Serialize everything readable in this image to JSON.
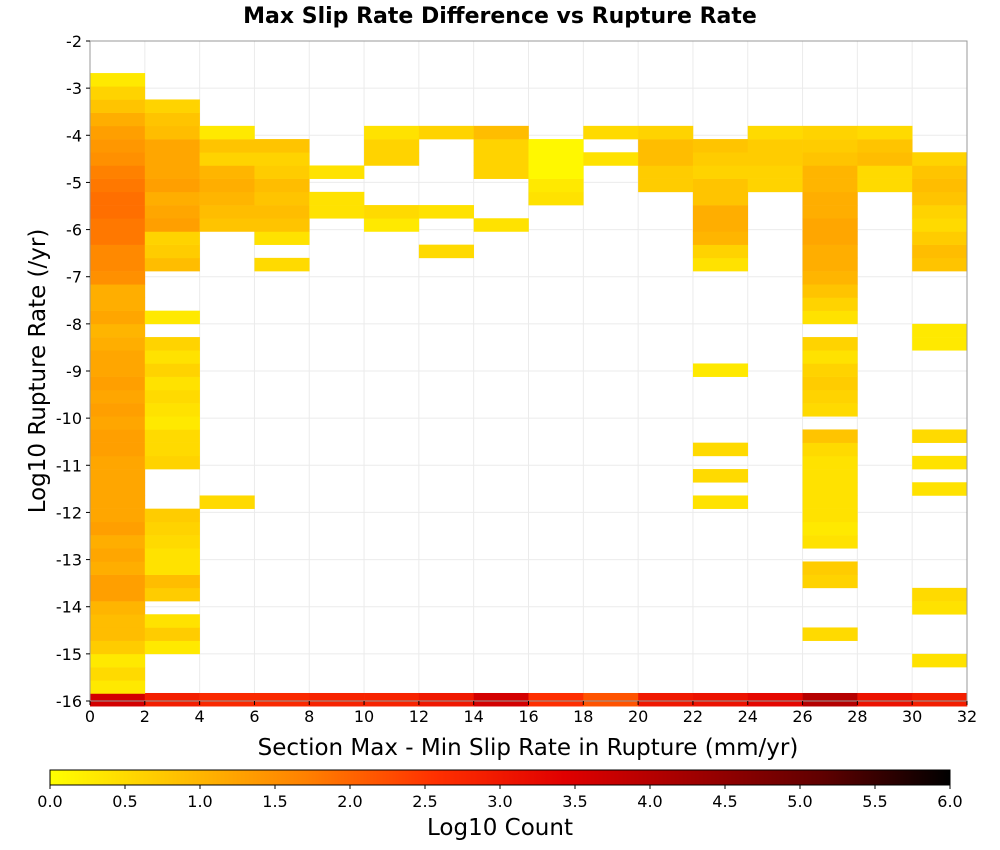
{
  "chart_data": {
    "type": "heatmap",
    "title": "Max Slip Rate Difference vs Rupture Rate",
    "xlabel": "Section Max - Min Slip Rate in Rupture (mm/yr)",
    "ylabel": "Log10 Rupture Rate (/yr)",
    "xlim": [
      0,
      32
    ],
    "ylim": [
      -16,
      -2
    ],
    "x_ticks": [
      0,
      2,
      4,
      6,
      8,
      10,
      12,
      14,
      16,
      18,
      20,
      22,
      24,
      26,
      28,
      30,
      32
    ],
    "y_ticks": [
      -2,
      -3,
      -4,
      -5,
      -6,
      -7,
      -8,
      -9,
      -10,
      -11,
      -12,
      -13,
      -14,
      -15,
      -16
    ],
    "grid": true,
    "x_bin_width": 2,
    "y_bin_height": 0.28,
    "colorbar": {
      "label": "Log10 Count",
      "min": 0,
      "max": 6,
      "ticks": [
        "0.0",
        "0.5",
        "1.0",
        "1.5",
        "2.0",
        "2.5",
        "3.0",
        "3.5",
        "4.0",
        "4.5",
        "5.0",
        "5.5",
        "6.0"
      ],
      "position": "bottom",
      "colormap": [
        "#ffff00",
        "#ffc000",
        "#ff8000",
        "#ff3000",
        "#e00000",
        "#a00000",
        "#600000",
        "#000000"
      ]
    },
    "cells": [
      [
        0,
        -15.97,
        3.6
      ],
      [
        1,
        -15.97,
        2.9
      ],
      [
        2,
        -15.97,
        2.7
      ],
      [
        3,
        -15.97,
        2.7
      ],
      [
        4,
        -15.97,
        2.8
      ],
      [
        5,
        -15.97,
        2.8
      ],
      [
        6,
        -15.97,
        3.0
      ],
      [
        7,
        -15.97,
        3.6
      ],
      [
        8,
        -15.97,
        2.6
      ],
      [
        9,
        -15.97,
        2.2
      ],
      [
        10,
        -15.97,
        3.0
      ],
      [
        11,
        -15.97,
        3.1
      ],
      [
        12,
        -15.97,
        3.3
      ],
      [
        13,
        -15.97,
        4.0
      ],
      [
        14,
        -15.97,
        3.1
      ],
      [
        15,
        -15.97,
        2.9
      ],
      [
        0,
        -15.7,
        0.3
      ],
      [
        0,
        -15.42,
        0.5
      ],
      [
        0,
        -15.14,
        0.3
      ],
      [
        0,
        -14.86,
        0.7
      ],
      [
        0,
        -14.58,
        0.9
      ],
      [
        0,
        -14.3,
        0.9
      ],
      [
        0,
        -14.02,
        1.0
      ],
      [
        0,
        -13.74,
        1.3
      ],
      [
        0,
        -13.46,
        1.3
      ],
      [
        0,
        -13.18,
        1.1
      ],
      [
        0,
        -12.9,
        1.2
      ],
      [
        0,
        -12.62,
        1.1
      ],
      [
        0,
        -12.34,
        1.3
      ],
      [
        0,
        -12.06,
        1.2
      ],
      [
        0,
        -11.78,
        1.2
      ],
      [
        0,
        -11.5,
        1.2
      ],
      [
        0,
        -11.22,
        1.2
      ],
      [
        0,
        -10.94,
        1.2
      ],
      [
        0,
        -10.66,
        1.3
      ],
      [
        0,
        -10.38,
        1.3
      ],
      [
        0,
        -10.1,
        1.2
      ],
      [
        0,
        -9.82,
        1.3
      ],
      [
        0,
        -9.54,
        1.2
      ],
      [
        0,
        -9.26,
        1.3
      ],
      [
        0,
        -8.98,
        1.2
      ],
      [
        0,
        -8.7,
        1.2
      ],
      [
        0,
        -8.42,
        1.1
      ],
      [
        0,
        -8.14,
        1.0
      ],
      [
        0,
        -7.86,
        1.2
      ],
      [
        0,
        -7.58,
        1.1
      ],
      [
        0,
        -7.3,
        1.1
      ],
      [
        0,
        -7.02,
        1.5
      ],
      [
        0,
        -6.74,
        1.6
      ],
      [
        0,
        -6.46,
        1.6
      ],
      [
        0,
        -6.18,
        1.8
      ],
      [
        0,
        -5.9,
        1.8
      ],
      [
        0,
        -5.62,
        1.9
      ],
      [
        0,
        -5.34,
        1.9
      ],
      [
        0,
        -5.06,
        1.8
      ],
      [
        0,
        -4.78,
        1.7
      ],
      [
        0,
        -4.5,
        1.5
      ],
      [
        0,
        -4.22,
        1.4
      ],
      [
        0,
        -3.94,
        1.3
      ],
      [
        0,
        -3.66,
        1.1
      ],
      [
        0,
        -3.38,
        0.8
      ],
      [
        0,
        -3.1,
        0.6
      ],
      [
        0,
        -2.82,
        0.3
      ],
      [
        1,
        -14.86,
        0.3
      ],
      [
        1,
        -14.58,
        0.7
      ],
      [
        1,
        -14.3,
        0.4
      ],
      [
        1,
        -13.74,
        0.7
      ],
      [
        1,
        -13.46,
        0.9
      ],
      [
        1,
        -13.18,
        0.4
      ],
      [
        1,
        -12.9,
        0.4
      ],
      [
        1,
        -12.62,
        0.5
      ],
      [
        1,
        -12.34,
        0.6
      ],
      [
        1,
        -12.06,
        0.7
      ],
      [
        1,
        -10.94,
        0.6
      ],
      [
        1,
        -10.66,
        0.5
      ],
      [
        1,
        -10.38,
        0.5
      ],
      [
        1,
        -10.1,
        0.3
      ],
      [
        1,
        -9.82,
        0.4
      ],
      [
        1,
        -9.54,
        0.5
      ],
      [
        1,
        -9.26,
        0.4
      ],
      [
        1,
        -8.98,
        0.6
      ],
      [
        1,
        -8.7,
        0.4
      ],
      [
        1,
        -8.42,
        0.6
      ],
      [
        1,
        -7.86,
        0.3
      ],
      [
        1,
        -6.74,
        0.9
      ],
      [
        1,
        -6.46,
        0.7
      ],
      [
        1,
        -6.18,
        0.6
      ],
      [
        1,
        -5.9,
        1.3
      ],
      [
        1,
        -5.62,
        1.2
      ],
      [
        1,
        -5.34,
        1.1
      ],
      [
        1,
        -5.06,
        1.3
      ],
      [
        1,
        -4.78,
        1.2
      ],
      [
        1,
        -4.5,
        1.2
      ],
      [
        1,
        -4.22,
        1.2
      ],
      [
        1,
        -3.94,
        0.9
      ],
      [
        1,
        -3.66,
        0.8
      ],
      [
        1,
        -3.38,
        0.6
      ],
      [
        2,
        -11.78,
        0.5
      ],
      [
        2,
        -5.9,
        0.8
      ],
      [
        2,
        -5.62,
        0.9
      ],
      [
        2,
        -5.34,
        1.0
      ],
      [
        2,
        -5.06,
        1.1
      ],
      [
        2,
        -4.78,
        1.0
      ],
      [
        2,
        -4.5,
        0.6
      ],
      [
        2,
        -4.22,
        0.8
      ],
      [
        2,
        -3.94,
        0.3
      ],
      [
        3,
        -6.74,
        0.5
      ],
      [
        3,
        -6.18,
        0.4
      ],
      [
        3,
        -5.9,
        0.8
      ],
      [
        3,
        -5.62,
        0.9
      ],
      [
        3,
        -5.34,
        0.8
      ],
      [
        3,
        -5.06,
        0.9
      ],
      [
        3,
        -4.78,
        0.7
      ],
      [
        3,
        -4.5,
        0.6
      ],
      [
        3,
        -4.22,
        0.8
      ],
      [
        4,
        -5.62,
        0.4
      ],
      [
        4,
        -5.34,
        0.4
      ],
      [
        4,
        -4.78,
        0.4
      ],
      [
        5,
        -5.9,
        0.3
      ],
      [
        5,
        -5.62,
        0.5
      ],
      [
        5,
        -4.5,
        0.6
      ],
      [
        5,
        -4.22,
        0.6
      ],
      [
        5,
        -3.94,
        0.4
      ],
      [
        6,
        -6.46,
        0.5
      ],
      [
        6,
        -5.62,
        0.4
      ],
      [
        6,
        -3.94,
        0.6
      ],
      [
        7,
        -5.9,
        0.4
      ],
      [
        7,
        -4.78,
        0.6
      ],
      [
        7,
        -4.5,
        0.6
      ],
      [
        7,
        -4.22,
        0.6
      ],
      [
        7,
        -3.94,
        0.9
      ],
      [
        8,
        -5.34,
        0.4
      ],
      [
        8,
        -5.06,
        0.3
      ],
      [
        8,
        -4.78,
        0.1
      ],
      [
        8,
        -4.5,
        0.1
      ],
      [
        8,
        -4.22,
        0.1
      ],
      [
        9,
        -4.5,
        0.4
      ],
      [
        9,
        -3.94,
        0.5
      ],
      [
        10,
        -5.06,
        0.7
      ],
      [
        10,
        -4.78,
        0.7
      ],
      [
        10,
        -4.5,
        0.9
      ],
      [
        10,
        -4.22,
        0.9
      ],
      [
        10,
        -3.94,
        0.6
      ],
      [
        11,
        -6.74,
        0.4
      ],
      [
        11,
        -6.46,
        0.6
      ],
      [
        11,
        -6.18,
        1.0
      ],
      [
        11,
        -5.9,
        1.1
      ],
      [
        11,
        -5.62,
        1.1
      ],
      [
        11,
        -5.34,
        0.8
      ],
      [
        11,
        -5.06,
        0.8
      ],
      [
        11,
        -4.78,
        0.6
      ],
      [
        11,
        -4.5,
        0.7
      ],
      [
        11,
        -4.22,
        0.8
      ],
      [
        11,
        -11.78,
        0.4
      ],
      [
        11,
        -11.22,
        0.5
      ],
      [
        11,
        -10.66,
        0.5
      ],
      [
        11,
        -8.98,
        0.3
      ],
      [
        12,
        -5.06,
        0.6
      ],
      [
        12,
        -4.78,
        0.6
      ],
      [
        12,
        -4.5,
        0.7
      ],
      [
        12,
        -4.22,
        0.7
      ],
      [
        12,
        -3.94,
        0.5
      ],
      [
        13,
        -14.58,
        0.5
      ],
      [
        13,
        -13.46,
        0.6
      ],
      [
        13,
        -13.18,
        0.7
      ],
      [
        13,
        -12.62,
        0.4
      ],
      [
        13,
        -12.34,
        0.3
      ],
      [
        13,
        -12.06,
        0.4
      ],
      [
        13,
        -11.78,
        0.4
      ],
      [
        13,
        -11.5,
        0.4
      ],
      [
        13,
        -11.22,
        0.4
      ],
      [
        13,
        -10.94,
        0.4
      ],
      [
        13,
        -10.66,
        0.5
      ],
      [
        13,
        -10.38,
        0.8
      ],
      [
        13,
        -9.82,
        0.5
      ],
      [
        13,
        -9.54,
        0.6
      ],
      [
        13,
        -9.26,
        0.7
      ],
      [
        13,
        -8.98,
        0.6
      ],
      [
        13,
        -8.7,
        0.4
      ],
      [
        13,
        -8.42,
        0.6
      ],
      [
        13,
        -7.86,
        0.4
      ],
      [
        13,
        -7.58,
        0.6
      ],
      [
        13,
        -7.3,
        0.8
      ],
      [
        13,
        -7.02,
        1.0
      ],
      [
        13,
        -6.74,
        1.1
      ],
      [
        13,
        -6.46,
        1.1
      ],
      [
        13,
        -6.18,
        1.2
      ],
      [
        13,
        -5.9,
        1.2
      ],
      [
        13,
        -5.62,
        1.1
      ],
      [
        13,
        -5.34,
        1.1
      ],
      [
        13,
        -5.06,
        1.0
      ],
      [
        13,
        -4.78,
        1.0
      ],
      [
        13,
        -4.5,
        0.8
      ],
      [
        13,
        -4.22,
        0.7
      ],
      [
        13,
        -3.94,
        0.6
      ],
      [
        14,
        -5.06,
        0.5
      ],
      [
        14,
        -4.78,
        0.5
      ],
      [
        14,
        -4.5,
        0.9
      ],
      [
        14,
        -4.22,
        0.8
      ],
      [
        14,
        -3.94,
        0.5
      ],
      [
        15,
        -15.14,
        0.4
      ],
      [
        15,
        -14.02,
        0.4
      ],
      [
        15,
        -13.74,
        0.5
      ],
      [
        15,
        -11.5,
        0.4
      ],
      [
        15,
        -10.94,
        0.4
      ],
      [
        15,
        -10.38,
        0.5
      ],
      [
        15,
        -8.42,
        0.3
      ],
      [
        15,
        -8.14,
        0.3
      ],
      [
        15,
        -6.74,
        0.8
      ],
      [
        15,
        -6.46,
        0.9
      ],
      [
        15,
        -6.18,
        0.7
      ],
      [
        15,
        -5.9,
        0.5
      ],
      [
        15,
        -5.62,
        0.6
      ],
      [
        15,
        -5.34,
        0.8
      ],
      [
        15,
        -5.06,
        0.9
      ],
      [
        15,
        -4.78,
        0.8
      ],
      [
        15,
        -4.5,
        0.6
      ]
    ]
  }
}
